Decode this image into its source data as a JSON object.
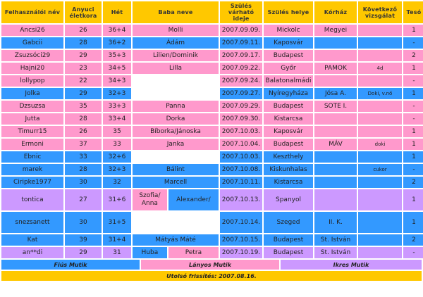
{
  "headers": {
    "user": "Felhasználói név",
    "age": "Anyuci életkora",
    "week": "Hét",
    "baby": "Baba neve",
    "date": "Szülés várható ideje",
    "place": "Szülés helye",
    "hospital": "Kórház",
    "next": "Következő vizsgálat",
    "sibling": "Tesó"
  },
  "rows": [
    {
      "style": "pink",
      "user": "Ancsi26",
      "age": "26",
      "week": "36+4",
      "baby": "Molli",
      "date": "2007.09.09.",
      "place": "Mickolc",
      "hospital": "Megyei",
      "next": "",
      "sibling": "1"
    },
    {
      "style": "blue",
      "user": "Gabcii",
      "age": "28",
      "week": "36+2",
      "baby": "Ádám",
      "date": "2007.09.11.",
      "place": "Kaposvár",
      "hospital": "",
      "next": "",
      "sibling": "-"
    },
    {
      "style": "pink",
      "user": "Zsuzsóci29",
      "age": "29",
      "week": "35+3",
      "baby": "Lilien/Dominik",
      "date": "2007.09.17.",
      "place": "Budapest",
      "hospital": "",
      "next": "",
      "sibling": "2"
    },
    {
      "style": "pink",
      "user": "Hajni20",
      "age": "23",
      "week": "34+5",
      "baby": "Lilla",
      "date": "2007.09.22.",
      "place": "Győr",
      "hospital": "PAMOK",
      "next": "4d",
      "sibling": "1"
    },
    {
      "style": "pink",
      "user": "lollypop",
      "age": "22",
      "week": "34+3",
      "baby": "",
      "date": "2007.09.24.",
      "place": "Balatonalmádi",
      "hospital": "",
      "next": "",
      "sibling": "-"
    },
    {
      "style": "blue",
      "user": "Jolka",
      "age": "29",
      "week": "32+3",
      "baby": "",
      "date": "2007.09.27.",
      "place": "Nyíregyháza",
      "hospital": "Jósa A.",
      "next": "Doki, v.nő",
      "sibling": "1"
    },
    {
      "style": "pink",
      "user": "Dzsuzsa",
      "age": "35",
      "week": "33+3",
      "baby": "Panna",
      "date": "2007.09.29.",
      "place": "Budapest",
      "hospital": "SOTE I.",
      "next": "",
      "sibling": "-"
    },
    {
      "style": "pink",
      "user": "Jutta",
      "age": "28",
      "week": "33+4",
      "baby": "Dorka",
      "date": "2007.09.30.",
      "place": "Kistarcsa",
      "hospital": "",
      "next": "",
      "sibling": "-"
    },
    {
      "style": "pink",
      "user": "Timurr15",
      "age": "26",
      "week": "35",
      "baby": "Bíborka/Jánoska",
      "date": "2007.10.03.",
      "place": "Kaposvár",
      "hospital": "",
      "next": "",
      "sibling": "1"
    },
    {
      "style": "pink",
      "user": "Ermoni",
      "age": "37",
      "week": "33",
      "baby": "Janka",
      "date": "2007.10.04.",
      "place": "Budapest",
      "hospital": "MÁV",
      "next": "doki",
      "sibling": "1"
    },
    {
      "style": "blue",
      "user": "Ebnic",
      "age": "33",
      "week": "32+6",
      "baby": "",
      "date": "2007.10.03.",
      "place": "Keszthely",
      "hospital": "",
      "next": "",
      "sibling": "1"
    },
    {
      "style": "blue",
      "user": "marek",
      "age": "28",
      "week": "32+3",
      "baby": "Bálint",
      "date": "2007.10.08.",
      "place": "Kiskunhalas",
      "hospital": "",
      "next": "cukor",
      "sibling": "-"
    },
    {
      "style": "blue",
      "user": "Ciripke1977",
      "age": "30",
      "week": "32",
      "baby": "Marcell",
      "date": "2007.10.11.",
      "place": "Kistarcsa",
      "hospital": "",
      "next": "",
      "sibling": "2"
    },
    {
      "style": "lilac",
      "user": "tontica",
      "age": "27",
      "week": "31+6",
      "baby_left": "Szofia/ Anna",
      "baby_right": "Alexander/",
      "date": "2007.10.13.",
      "place": "Spanyol",
      "hospital": "",
      "next": "",
      "sibling": "1"
    },
    {
      "style": "blue",
      "user": "snezsanett",
      "age": "30",
      "week": "31+5",
      "baby": "",
      "date": "2007.10.14.",
      "place": "Szeged",
      "hospital": "II. K.",
      "next": "",
      "sibling": "1"
    },
    {
      "style": "blue",
      "user": "Kat",
      "age": "39",
      "week": "31+4",
      "baby": "Mátyás Máté",
      "date": "2007.10.15.",
      "place": "Budapest",
      "hospital": "St. István",
      "next": "",
      "sibling": "2"
    },
    {
      "style": "lilac",
      "user": "an**di",
      "age": "29",
      "week": "31",
      "baby_left": "Huba",
      "baby_right": "Petra",
      "date": "2007.10.19.",
      "place": "Budapest",
      "hospital": "St. István",
      "next": "",
      "sibling": "-"
    }
  ],
  "legend": {
    "boys": "Fiús Mutik",
    "girls": "Lányos Mutik",
    "twins": "Ikres Mutik"
  },
  "footer": "Utolsó frissítés: 2007.08.16.",
  "colors": {
    "header": "#ffc800",
    "boy": "#3399ff",
    "girl": "#ff99cc",
    "twins": "#cc99ff"
  }
}
